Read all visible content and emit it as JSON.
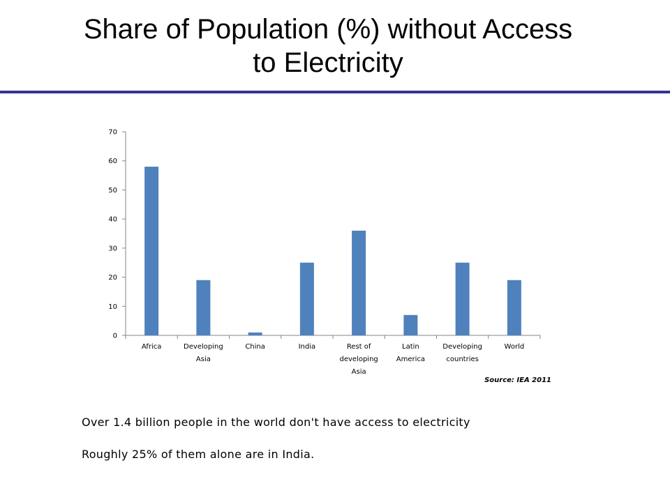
{
  "title_line1": "Share of Population (%) without Access",
  "title_line2": "to Electricity",
  "colors": {
    "bar": "#4F81BD",
    "rule": "#333399"
  },
  "chart_data": {
    "type": "bar",
    "categories": [
      [
        "Africa"
      ],
      [
        "Developing",
        "Asia"
      ],
      [
        "China"
      ],
      [
        "India"
      ],
      [
        "Rest of",
        "developing",
        "Asia"
      ],
      [
        "Latin",
        "America"
      ],
      [
        "Developing",
        "countries"
      ],
      [
        "World"
      ]
    ],
    "values": [
      58,
      19,
      1,
      25,
      36,
      7,
      25,
      19
    ],
    "ylim": [
      0,
      70
    ],
    "yticks": [
      0,
      10,
      20,
      30,
      40,
      50,
      60,
      70
    ],
    "grid": false,
    "source": "Source: IEA 2011"
  },
  "notes": [
    "Over 1.4 billion people in the world don't have access to electricity",
    "Roughly 25% of them alone are in India."
  ]
}
